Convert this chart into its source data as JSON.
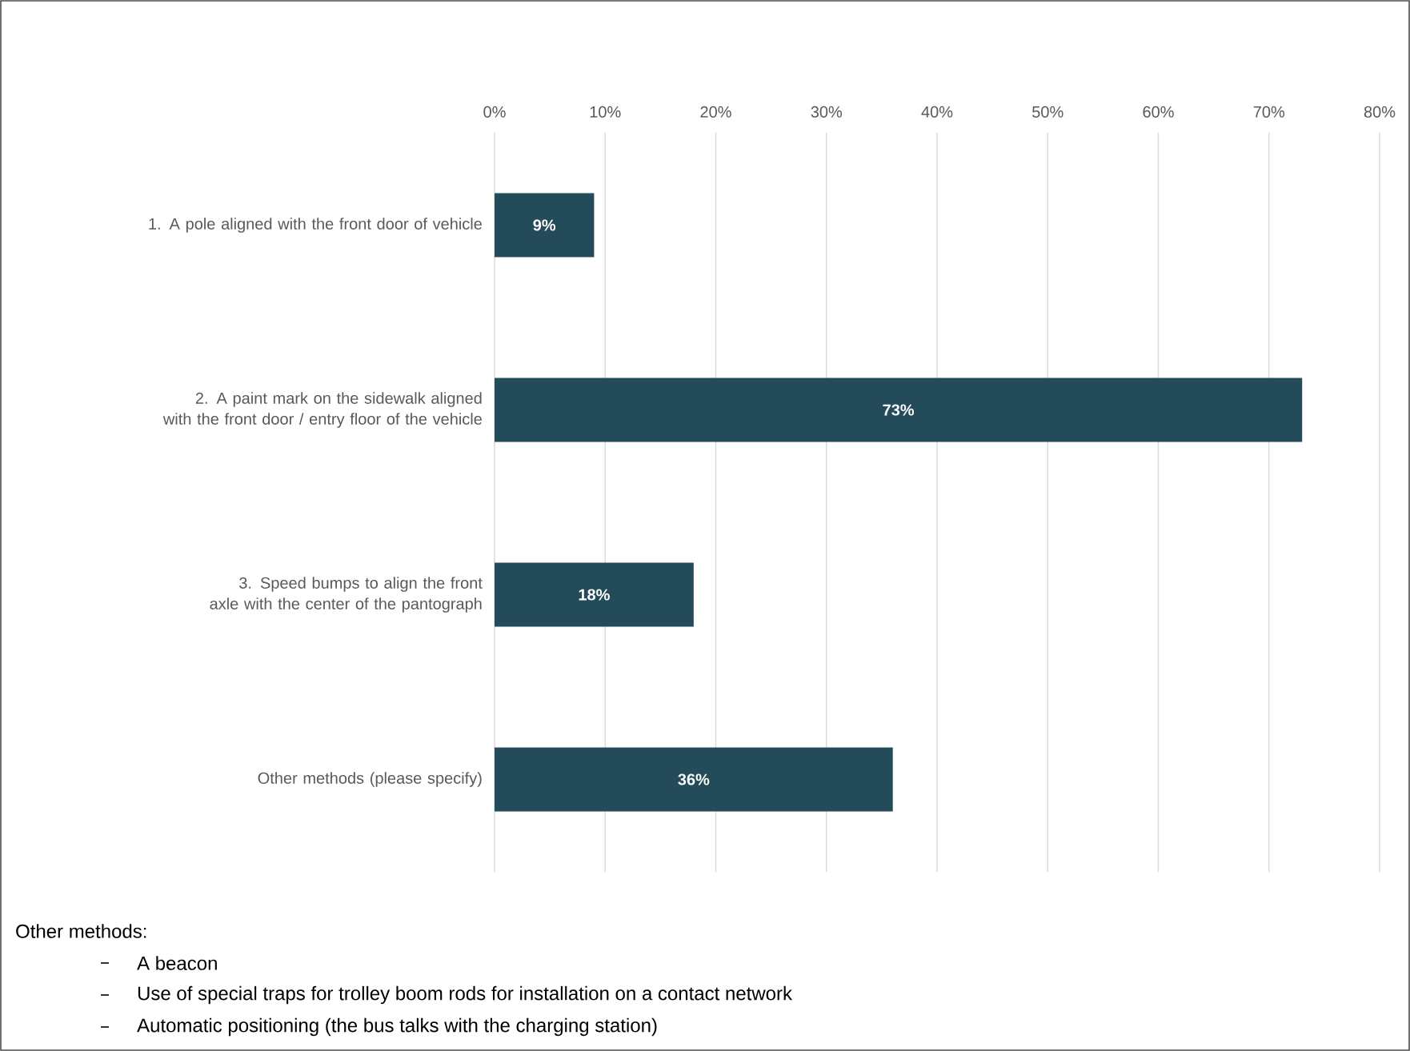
{
  "chart_data": {
    "type": "bar",
    "orientation": "horizontal",
    "categories": [
      "1. A pole aligned with the front door of vehicle",
      "2. A paint mark on the sidewalk aligned with the front door / entry floor of the vehicle",
      "3. Speed bumps to align the front axle with the center of the pantograph",
      "Other methods (please specify)"
    ],
    "values": [
      9,
      73,
      18,
      36
    ],
    "value_labels": [
      "9%",
      "73%",
      "18%",
      "36%"
    ],
    "color": "#244b5a",
    "xlim": [
      0,
      80
    ],
    "xticks": [
      {
        "value": 0,
        "label": "0%"
      },
      {
        "value": 10,
        "label": "10%"
      },
      {
        "value": 20,
        "label": "20%"
      },
      {
        "value": 30,
        "label": "30%"
      },
      {
        "value": 40,
        "label": "40%"
      },
      {
        "value": 50,
        "label": "50%"
      },
      {
        "value": 60,
        "label": "60%"
      },
      {
        "value": 70,
        "label": "70%"
      },
      {
        "value": 80,
        "label": "80%"
      }
    ],
    "grid": "x",
    "annotations": [
      "Other methods:",
      "A beacon",
      "Use of special traps for trolley boom rods for installation on a contact network",
      "Automatic positioning (the bus talks with the charging station)"
    ]
  }
}
